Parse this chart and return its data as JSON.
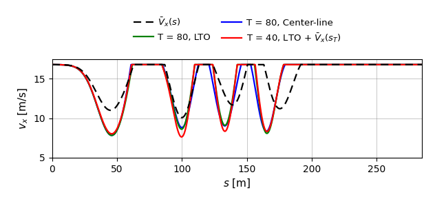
{
  "xlim": [
    0,
    285
  ],
  "ylim": [
    5,
    17.5
  ],
  "yticks": [
    5,
    10,
    15
  ],
  "xticks": [
    0,
    50,
    100,
    150,
    200,
    250
  ],
  "xlabel": "$s$ [m]",
  "ylabel": "$v_x$ [m/s]",
  "grid": true,
  "colors": {
    "black": "#000000",
    "blue": "#0000FF",
    "green": "#008000",
    "red": "#FF0000"
  },
  "figsize": [
    6.32,
    2.86
  ],
  "dpi": 100,
  "base_speed": 16.8
}
